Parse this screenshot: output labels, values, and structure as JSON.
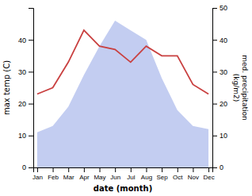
{
  "chart_data": {
    "type": "line",
    "xlabel": "date (month)",
    "ylabel": "max temp (C)",
    "y2label": "med. precipitation\n(kg/m2)",
    "categories": [
      "Jan",
      "Feb",
      "Mar",
      "Apr",
      "May",
      "Jun",
      "Jul",
      "Aug",
      "Sep",
      "Oct",
      "Nov",
      "Dec"
    ],
    "series": [
      {
        "type": "area",
        "axis": "y2",
        "color": "#b8c4ee",
        "values": [
          11,
          13,
          19,
          29,
          38,
          46,
          43,
          40,
          28,
          18,
          13,
          12
        ]
      },
      {
        "type": "line",
        "color": "#c94040",
        "values": [
          23,
          25,
          33,
          43,
          38,
          37,
          33,
          38,
          35,
          35,
          26,
          23
        ]
      }
    ],
    "ylim": [
      0,
      50
    ],
    "yticks": [
      0,
      10,
      20,
      30,
      40
    ],
    "y2lim": [
      0,
      50
    ],
    "y2ticks": [
      0,
      10,
      20,
      30,
      40,
      50
    ],
    "grid": false
  }
}
